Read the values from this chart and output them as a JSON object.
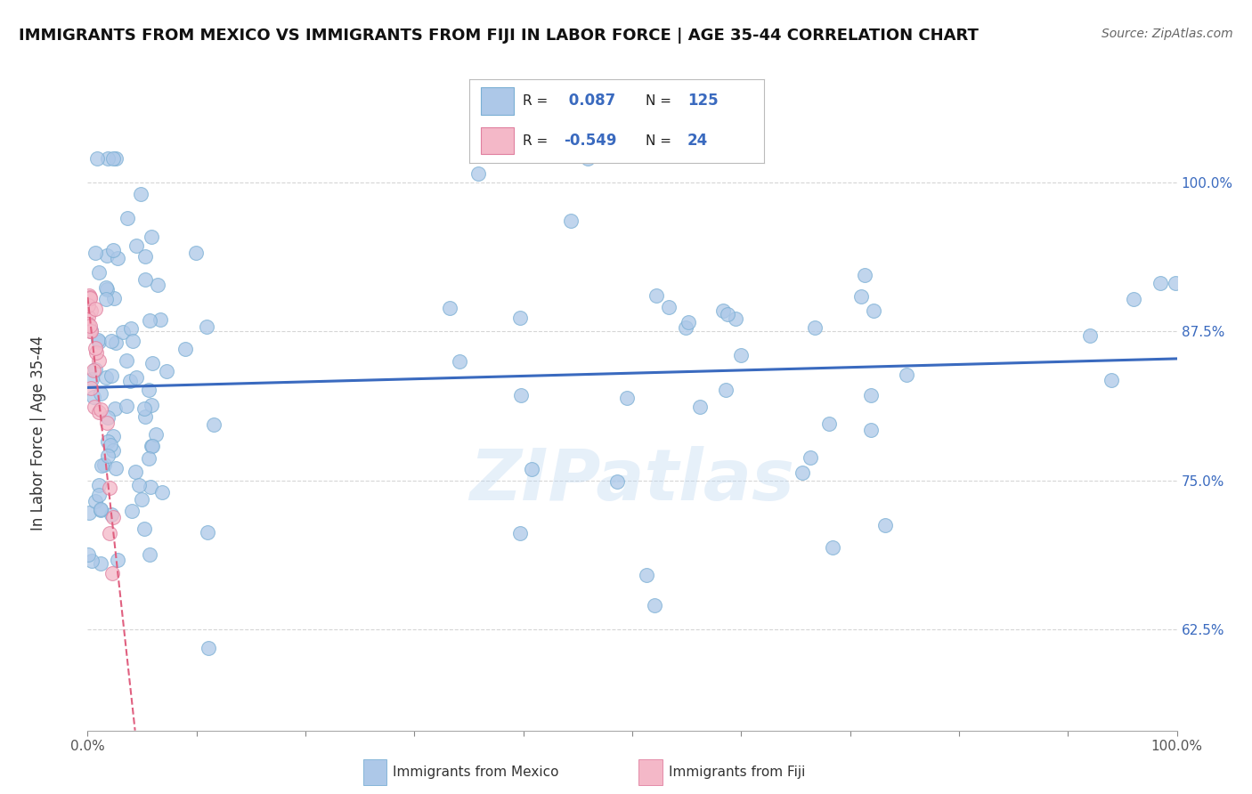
{
  "title": "IMMIGRANTS FROM MEXICO VS IMMIGRANTS FROM FIJI IN LABOR FORCE | AGE 35-44 CORRELATION CHART",
  "source": "Source: ZipAtlas.com",
  "ylabel": "In Labor Force | Age 35-44",
  "xlim": [
    0.0,
    1.0
  ],
  "ylim": [
    0.54,
    1.04
  ],
  "y_ticks": [
    0.625,
    0.75,
    0.875,
    1.0
  ],
  "y_tick_labels": [
    "62.5%",
    "75.0%",
    "87.5%",
    "100.0%"
  ],
  "legend_R_mexico": "0.087",
  "legend_N_mexico": "125",
  "legend_R_fiji": "-0.549",
  "legend_N_fiji": "24",
  "mexico_color": "#adc8e8",
  "fiji_color": "#f4b8c8",
  "mexico_edge_color": "#7aafd4",
  "fiji_edge_color": "#e080a0",
  "mexico_line_color": "#3a6abf",
  "fiji_line_color": "#e06080",
  "background_color": "#ffffff",
  "grid_color": "#cccccc",
  "watermark": "ZIPatlas",
  "title_fontsize": 13,
  "source_fontsize": 10,
  "tick_fontsize": 11
}
